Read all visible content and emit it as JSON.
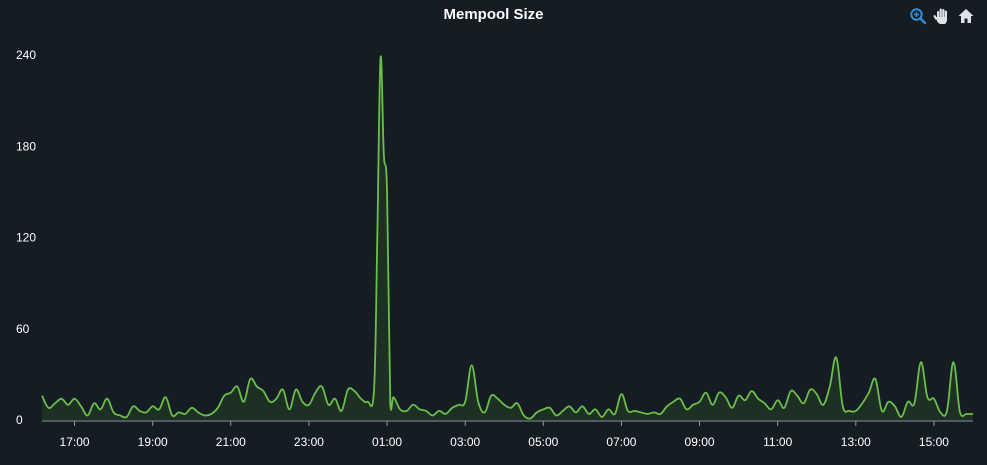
{
  "colors": {
    "background": "#151c23",
    "line": "#6abf4b",
    "fill": "#1f3423",
    "axis": "#8c98a3",
    "zoom_icon": "#2f8fd6",
    "tool_icon": "#dfe3e7"
  },
  "toolbar": {
    "tools": [
      "zoom-icon",
      "pan-hand-icon",
      "home-icon"
    ]
  },
  "chart_data": {
    "type": "area",
    "title": "Mempool Size",
    "xlabel": "",
    "ylabel": "",
    "ylim": [
      0,
      240
    ],
    "yticks": [
      0,
      60,
      120,
      180,
      240
    ],
    "x_start_label": "16:10",
    "x_end_label": "16:00",
    "xtick_labels": [
      "17:00",
      "19:00",
      "21:00",
      "23:00",
      "01:00",
      "03:00",
      "05:00",
      "07:00",
      "09:00",
      "11:00",
      "13:00",
      "15:00"
    ],
    "grid": false,
    "legend": "none",
    "series": [
      {
        "x": [
          "16:10",
          "16:20",
          "16:30",
          "16:40",
          "16:50",
          "17:00",
          "17:10",
          "17:20",
          "17:30",
          "17:40",
          "17:50",
          "18:00",
          "18:10",
          "18:20",
          "18:30",
          "18:40",
          "18:50",
          "19:00",
          "19:10",
          "19:20",
          "19:30",
          "19:40",
          "19:50",
          "20:00",
          "20:10",
          "20:20",
          "20:30",
          "20:40",
          "20:50",
          "21:00",
          "21:10",
          "21:20",
          "21:30",
          "21:40",
          "21:50",
          "22:00",
          "22:10",
          "22:20",
          "22:30",
          "22:40",
          "22:50",
          "23:00",
          "23:10",
          "23:20",
          "23:30",
          "23:40",
          "23:50",
          "00:00",
          "00:10",
          "00:20",
          "00:30",
          "00:40",
          "00:45",
          "00:50",
          "00:55",
          "01:00",
          "01:05",
          "01:10",
          "01:20",
          "01:30",
          "01:40",
          "01:50",
          "02:00",
          "02:10",
          "02:20",
          "02:30",
          "02:40",
          "02:50",
          "03:00",
          "03:10",
          "03:20",
          "03:30",
          "03:40",
          "03:50",
          "04:00",
          "04:10",
          "04:20",
          "04:30",
          "04:40",
          "04:50",
          "05:00",
          "05:10",
          "05:20",
          "05:30",
          "05:40",
          "05:50",
          "06:00",
          "06:10",
          "06:20",
          "06:30",
          "06:40",
          "06:50",
          "07:00",
          "07:10",
          "07:20",
          "07:30",
          "07:40",
          "07:50",
          "08:00",
          "08:10",
          "08:20",
          "08:30",
          "08:40",
          "08:50",
          "09:00",
          "09:10",
          "09:20",
          "09:30",
          "09:40",
          "09:50",
          "10:00",
          "10:10",
          "10:20",
          "10:30",
          "10:40",
          "10:50",
          "11:00",
          "11:10",
          "11:20",
          "11:30",
          "11:40",
          "11:50",
          "12:00",
          "12:10",
          "12:20",
          "12:30",
          "12:40",
          "12:50",
          "13:00",
          "13:10",
          "13:20",
          "13:30",
          "13:40",
          "13:50",
          "14:00",
          "14:10",
          "14:20",
          "14:30",
          "14:40",
          "14:50",
          "15:00",
          "15:10",
          "15:20",
          "15:30",
          "15:40",
          "15:50",
          "16:00"
        ],
        "y": [
          16,
          8,
          11,
          14,
          10,
          14,
          9,
          3,
          11,
          7,
          14,
          5,
          3,
          2,
          9,
          6,
          5,
          9,
          7,
          15,
          3,
          5,
          4,
          8,
          5,
          3,
          4,
          8,
          16,
          18,
          22,
          12,
          27,
          22,
          19,
          12,
          14,
          20,
          7,
          20,
          12,
          10,
          18,
          22,
          10,
          14,
          6,
          20,
          19,
          14,
          12,
          20,
          120,
          238,
          175,
          150,
          10,
          15,
          7,
          6,
          10,
          7,
          6,
          3,
          6,
          4,
          8,
          10,
          12,
          36,
          12,
          5,
          16,
          14,
          10,
          8,
          11,
          3,
          1,
          5,
          7,
          8,
          3,
          6,
          9,
          5,
          9,
          4,
          7,
          2,
          7,
          4,
          17,
          6,
          6,
          5,
          4,
          5,
          4,
          9,
          12,
          14,
          7,
          10,
          12,
          18,
          10,
          18,
          15,
          8,
          16,
          13,
          19,
          14,
          11,
          7,
          13,
          8,
          19,
          16,
          11,
          20,
          17,
          10,
          22,
          41,
          9,
          6,
          6,
          11,
          18,
          27,
          6,
          12,
          9,
          2,
          12,
          11,
          38,
          15,
          14,
          5,
          6,
          38,
          5,
          4,
          4
        ]
      }
    ]
  }
}
